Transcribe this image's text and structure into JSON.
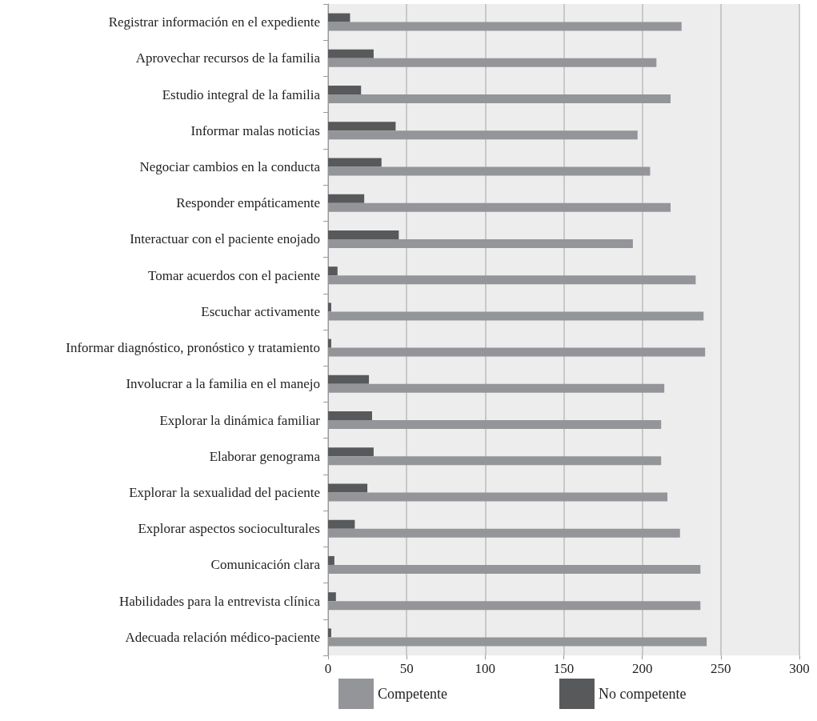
{
  "chart_data": {
    "type": "bar",
    "orientation": "horizontal",
    "categories": [
      "Registrar información en el expediente",
      "Aprovechar recursos de la familia",
      "Estudio integral de la familia",
      "Informar malas noticias",
      "Negociar cambios en la conducta",
      "Responder empáticamente",
      "Interactuar con el paciente enojado",
      "Tomar acuerdos con el paciente",
      "Escuchar activamente",
      "Informar diagnóstico, pronóstico y tratamiento",
      "Involucrar a la familia en el manejo",
      "Explorar la dinámica familiar",
      "Elaborar genograma",
      "Explorar la sexualidad del paciente",
      "Explorar aspectos socioculturales",
      "Comunicación clara",
      "Habilidades para la entrevista clínica",
      "Adecuada relación médico-paciente"
    ],
    "series": [
      {
        "name": "Competente",
        "color": "#939598",
        "values": [
          225,
          209,
          218,
          197,
          205,
          218,
          194,
          234,
          239,
          240,
          214,
          212,
          212,
          216,
          224,
          237,
          237,
          241
        ]
      },
      {
        "name": "No competente",
        "color": "#58595b",
        "values": [
          14,
          29,
          21,
          43,
          34,
          23,
          45,
          6,
          2,
          2,
          26,
          28,
          29,
          25,
          17,
          4,
          5,
          2
        ]
      }
    ],
    "xlim": [
      0,
      300
    ],
    "xticks": [
      0,
      50,
      100,
      150,
      200,
      250,
      300
    ],
    "grid": "x",
    "legend": "bottom"
  }
}
